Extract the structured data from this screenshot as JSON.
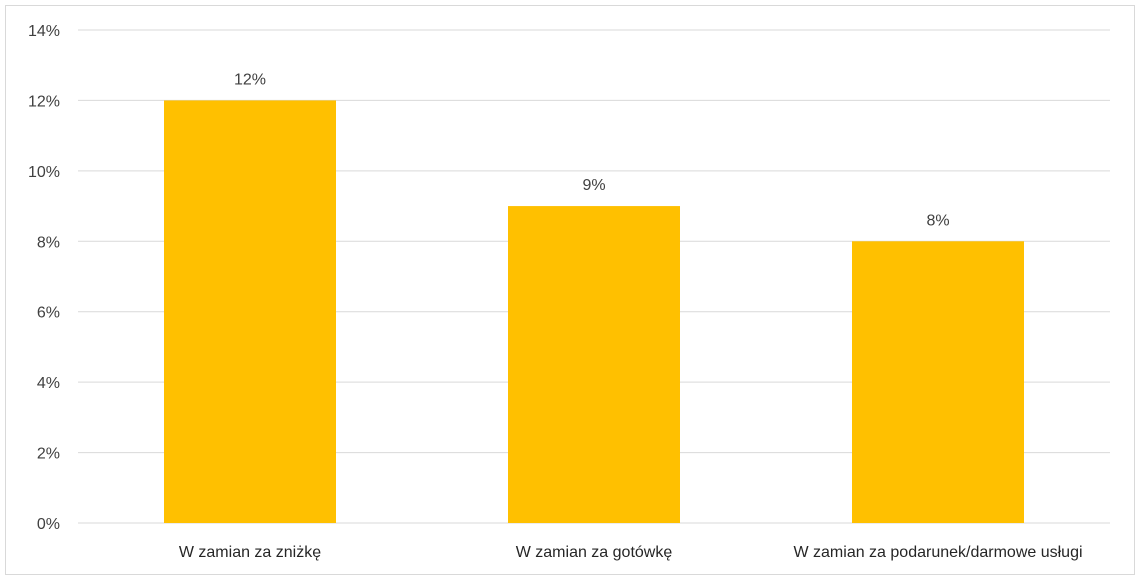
{
  "chart_data": {
    "type": "bar",
    "categories": [
      "W zamian za zniżkę",
      "W zamian za gotówkę",
      "W zamian za podarunek/darmowe usługi"
    ],
    "values": [
      12,
      9,
      8
    ],
    "data_labels": [
      "12%",
      "9%",
      "8%"
    ],
    "ylim": [
      0,
      14
    ],
    "yticks": [
      0,
      2,
      4,
      6,
      8,
      10,
      12,
      14
    ],
    "ytick_labels": [
      "0%",
      "2%",
      "4%",
      "6%",
      "8%",
      "10%",
      "12%",
      "14%"
    ],
    "title": "",
    "xlabel": "",
    "ylabel": "",
    "grid": true,
    "legend": "none",
    "bar_color": "#FFC000",
    "grid_color": "#D9D9D9"
  }
}
